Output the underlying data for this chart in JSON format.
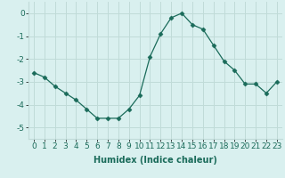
{
  "x": [
    0,
    1,
    2,
    3,
    4,
    5,
    6,
    7,
    8,
    9,
    10,
    11,
    12,
    13,
    14,
    15,
    16,
    17,
    18,
    19,
    20,
    21,
    22,
    23
  ],
  "y": [
    -2.6,
    -2.8,
    -3.2,
    -3.5,
    -3.8,
    -4.2,
    -4.6,
    -4.6,
    -4.6,
    -4.2,
    -3.6,
    -1.9,
    -0.9,
    -0.2,
    0.0,
    -0.5,
    -0.7,
    -1.4,
    -2.1,
    -2.5,
    -3.1,
    -3.1,
    -3.5,
    -3.0
  ],
  "line_color": "#1a6b5a",
  "marker": "D",
  "marker_size": 2.5,
  "bg_color": "#d9f0ef",
  "grid_color": "#c0dbd8",
  "xlabel": "Humidex (Indice chaleur)",
  "xlabel_fontsize": 7,
  "tick_fontsize": 6.5,
  "xlim": [
    -0.5,
    23.5
  ],
  "ylim": [
    -5.5,
    0.5
  ],
  "yticks": [
    0,
    -1,
    -2,
    -3,
    -4,
    -5
  ],
  "xticks": [
    0,
    1,
    2,
    3,
    4,
    5,
    6,
    7,
    8,
    9,
    10,
    11,
    12,
    13,
    14,
    15,
    16,
    17,
    18,
    19,
    20,
    21,
    22,
    23
  ]
}
